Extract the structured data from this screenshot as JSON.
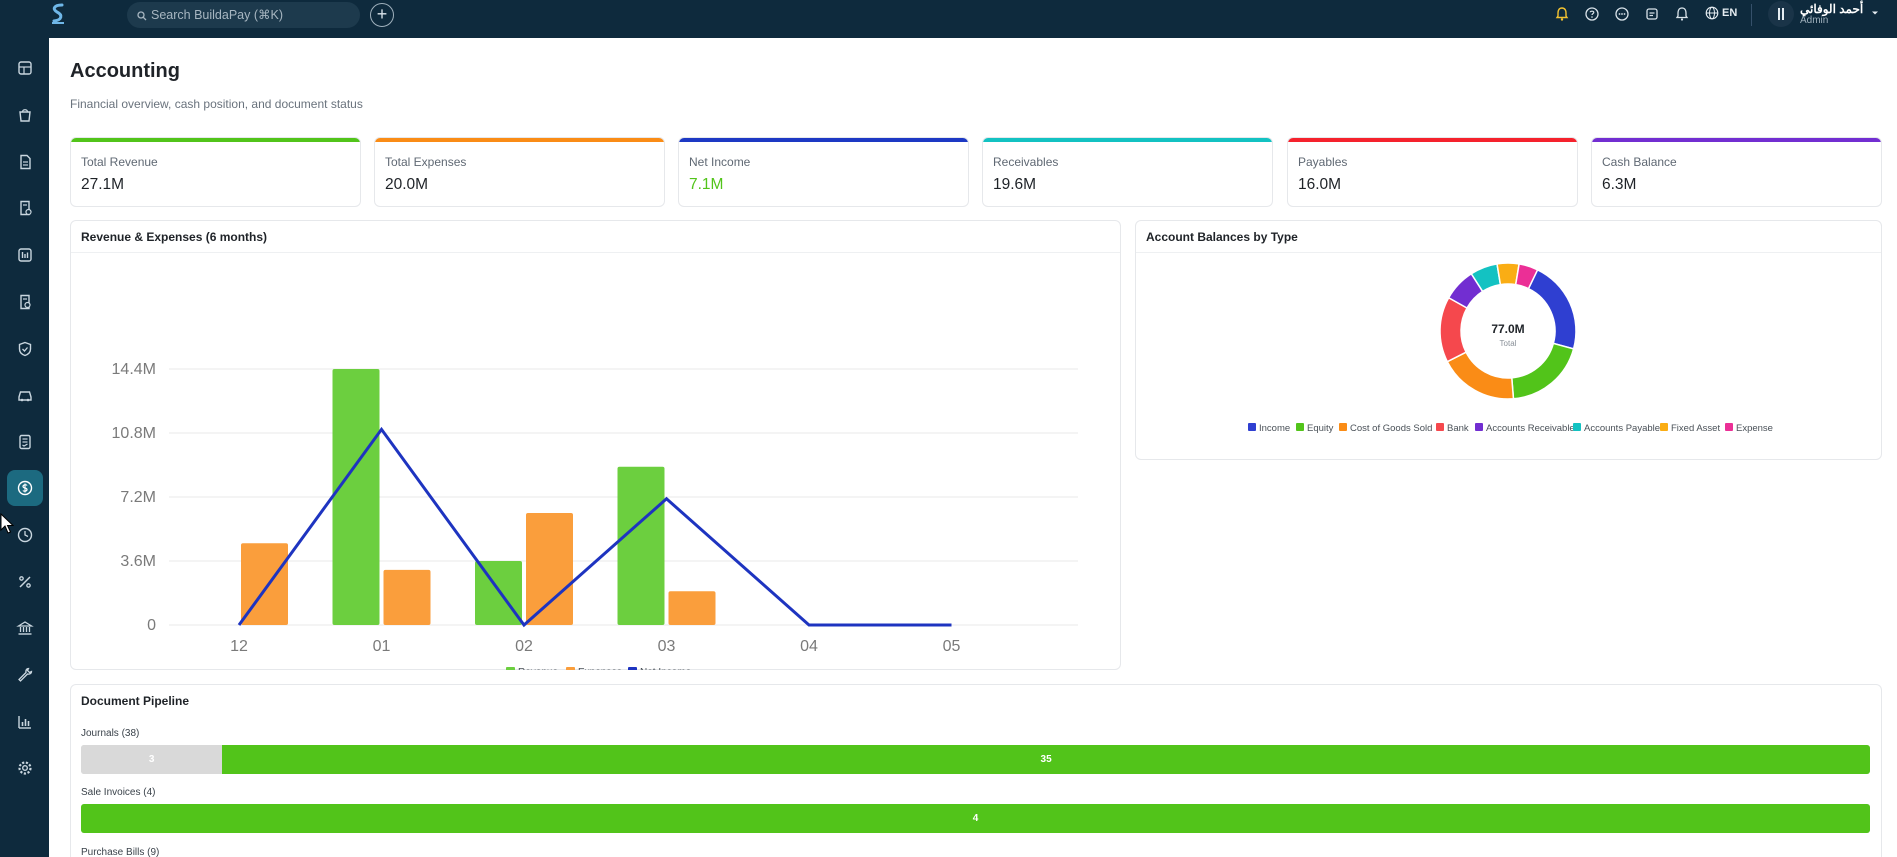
{
  "topbar": {
    "search_placeholder": "Search BuildaPay (⌘K)",
    "add_label": "+",
    "language": "EN",
    "user_name": "أحمد الوفائي",
    "user_role": "Admin"
  },
  "sidebar": {
    "items": [
      {
        "icon": "dashboard-icon"
      },
      {
        "icon": "bag-icon"
      },
      {
        "icon": "document-icon"
      },
      {
        "icon": "receipt-icon"
      },
      {
        "icon": "report-icon"
      },
      {
        "icon": "file-check-icon"
      },
      {
        "icon": "shield-icon"
      },
      {
        "icon": "car-icon"
      },
      {
        "icon": "invoice-icon"
      },
      {
        "icon": "dollar-icon",
        "active": true
      },
      {
        "icon": "clock-icon"
      },
      {
        "icon": "percent-icon"
      },
      {
        "icon": "bank-icon"
      },
      {
        "icon": "wrench-icon"
      },
      {
        "icon": "bar-chart-icon"
      },
      {
        "icon": "gear-icon"
      }
    ]
  },
  "page": {
    "title": "Accounting",
    "subtitle": "Financial overview, cash position, and document status"
  },
  "kpis": [
    {
      "label": "Total Revenue",
      "value": "27.1M",
      "color": "#52c41a"
    },
    {
      "label": "Total Expenses",
      "value": "20.0M",
      "color": "#fa8c16"
    },
    {
      "label": "Net Income",
      "value": "7.1M",
      "color": "#1d39c4",
      "value_color": "#52c41a"
    },
    {
      "label": "Receivables",
      "value": "19.6M",
      "color": "#13c2c2"
    },
    {
      "label": "Payables",
      "value": "16.0M",
      "color": "#f5222d"
    },
    {
      "label": "Cash Balance",
      "value": "6.3M",
      "color": "#722ed1"
    }
  ],
  "revenue_card": {
    "title": "Revenue & Expenses (6 months)"
  },
  "balances_card": {
    "title": "Account Balances by Type",
    "center_value": "77.0M",
    "center_label": "Total"
  },
  "chart_data": [
    {
      "type": "bar",
      "title": "Revenue & Expenses (6 months)",
      "categories": [
        "12",
        "01",
        "02",
        "03",
        "04",
        "05"
      ],
      "series": [
        {
          "name": "Revenue",
          "type": "bar",
          "color": "#6ccf3f",
          "values": [
            0,
            14.4,
            3.6,
            8.9,
            0,
            0
          ]
        },
        {
          "name": "Expenses",
          "type": "bar",
          "color": "#fa9e3c",
          "values": [
            4.6,
            3.1,
            6.3,
            1.9,
            0,
            0
          ]
        },
        {
          "name": "Net Income",
          "type": "line",
          "color": "#1e34c0",
          "values": [
            0,
            11.0,
            0,
            7.1,
            0,
            0
          ]
        }
      ],
      "yticks": [
        "0",
        "3.6M",
        "7.2M",
        "10.8M",
        "14.4M"
      ],
      "ylim": [
        0,
        14.4
      ],
      "unit": "M",
      "legend": "bottom",
      "grid": true
    },
    {
      "type": "pie",
      "title": "Account Balances by Type",
      "categories": [
        "Income",
        "Equity",
        "Cost of Goods Sold",
        "Bank",
        "Accounts Receivable",
        "Accounts Payable",
        "Fixed Asset",
        "Expense"
      ],
      "values": [
        17.0,
        15.0,
        14.5,
        12.0,
        6.0,
        5.0,
        4.0,
        3.5
      ],
      "colors": [
        "#2f3fd1",
        "#52c41a",
        "#fa8c16",
        "#f5484d",
        "#722ed1",
        "#13c2c2",
        "#faad14",
        "#eb2f96"
      ],
      "total": "77.0M",
      "legend": "bottom"
    }
  ],
  "pipeline": {
    "title": "Document Pipeline",
    "rows": [
      {
        "label": "Journals (38)",
        "segments": [
          {
            "value": 3,
            "color": "#d9d9d9"
          },
          {
            "value": 35,
            "color": "#52c41a"
          }
        ]
      },
      {
        "label": "Sale Invoices (4)",
        "segments": [
          {
            "value": 4,
            "color": "#52c41a"
          }
        ]
      },
      {
        "label": "Purchase Bills (9)",
        "segments": []
      }
    ]
  }
}
